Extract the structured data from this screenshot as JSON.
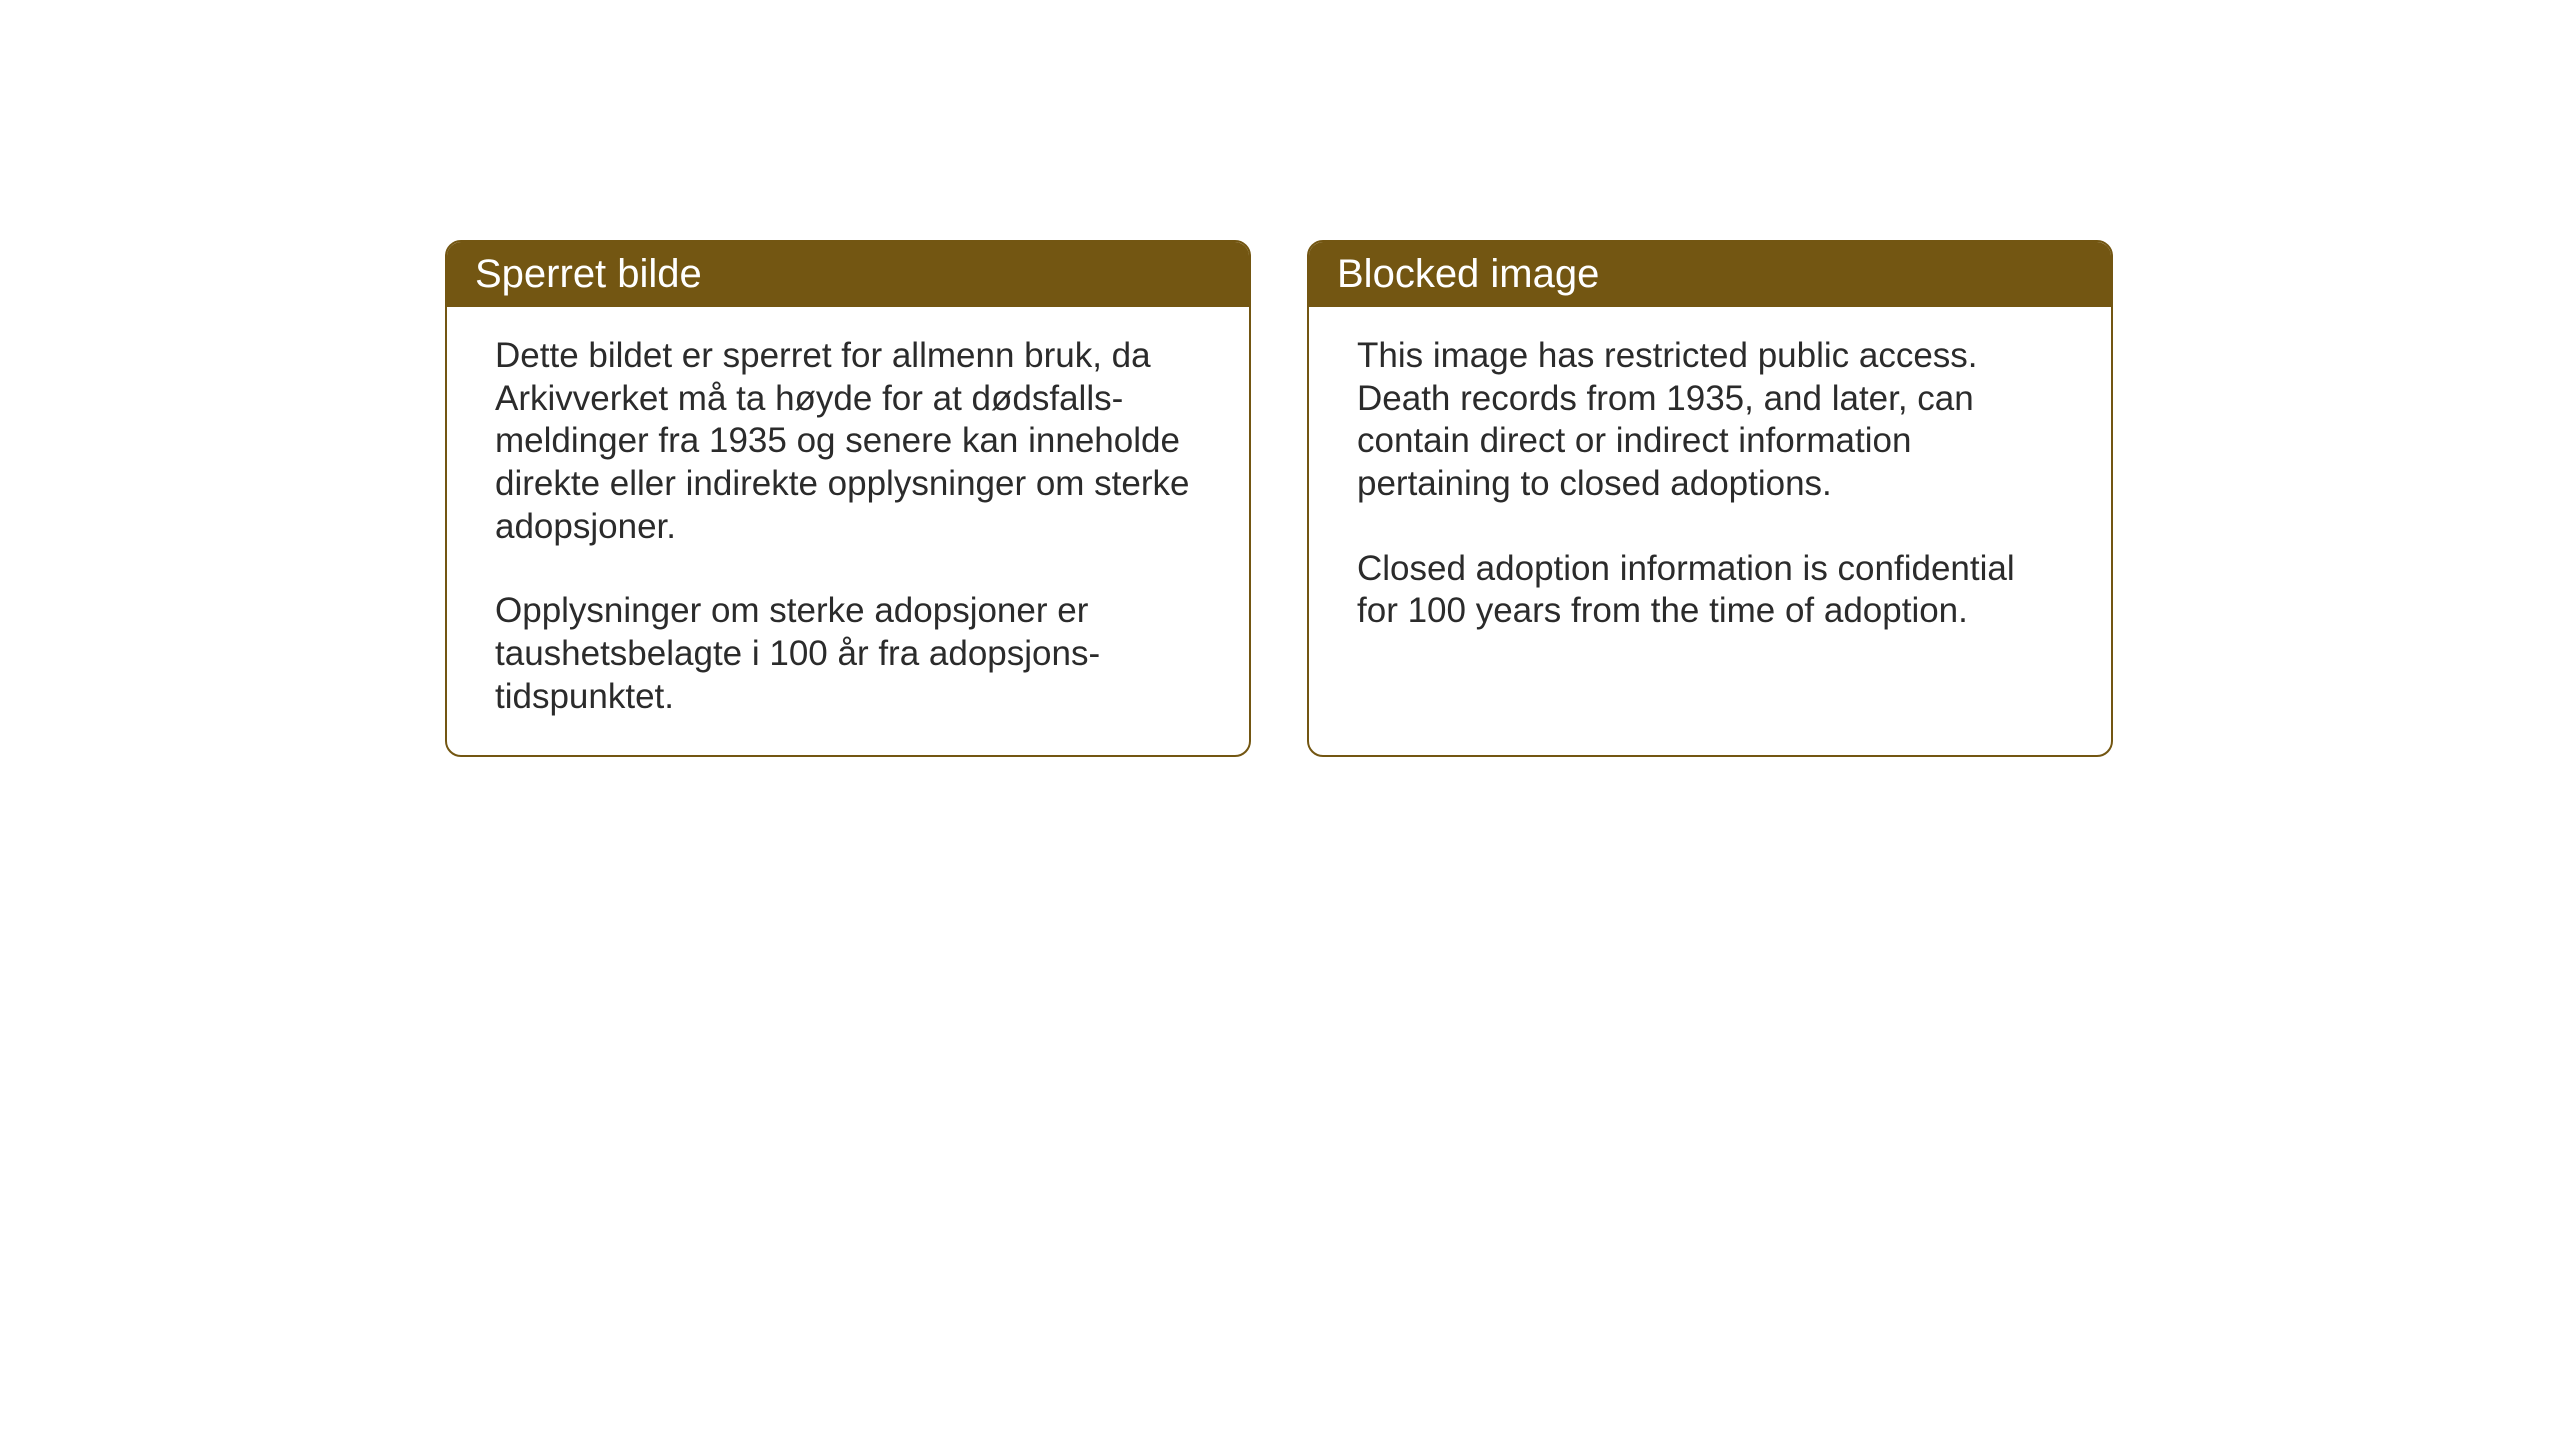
{
  "layout": {
    "background_color": "#ffffff",
    "card_border_color": "#735612",
    "card_header_bg": "#735612",
    "card_header_text_color": "#ffffff",
    "card_body_text_color": "#2b2b2b",
    "card_border_radius": 16,
    "header_fontsize": 40,
    "body_fontsize": 35
  },
  "cards": {
    "norwegian": {
      "title": "Sperret bilde",
      "paragraph1": "Dette bildet er sperret for allmenn bruk, da Arkivverket må ta høyde for at dødsfalls-meldinger fra 1935 og senere kan inneholde direkte eller indirekte opplysninger om sterke adopsjoner.",
      "paragraph2": "Opplysninger om sterke adopsjoner er taushetsbelagte i 100 år fra adopsjons-tidspunktet."
    },
    "english": {
      "title": "Blocked image",
      "paragraph1": "This image has restricted public access. Death records from 1935, and later, can contain direct or indirect information pertaining to closed adoptions.",
      "paragraph2": "Closed adoption information is confidential for 100 years from the time of adoption."
    }
  }
}
